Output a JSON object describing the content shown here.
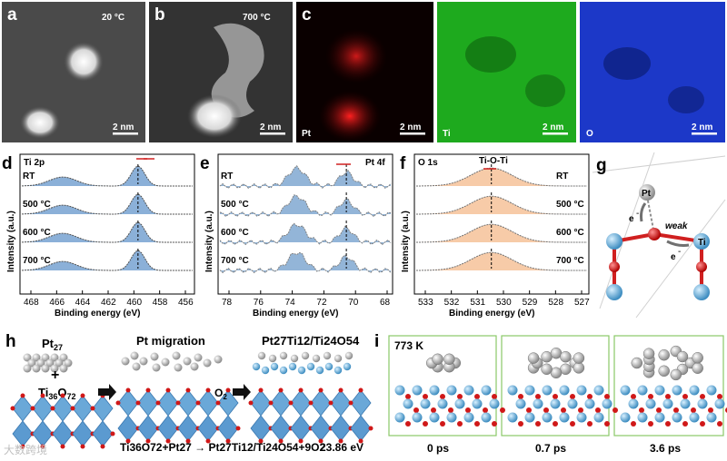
{
  "panels": {
    "a": {
      "label": "a",
      "temp": "20 °C",
      "scale": "2 nm"
    },
    "b": {
      "label": "b",
      "temp": "700 °C",
      "scale": "2 nm"
    },
    "c": {
      "label": "c",
      "maps": [
        {
          "element": "Pt",
          "scale": "2 nm",
          "color": "#e01010"
        },
        {
          "element": "Ti",
          "scale": "2 nm",
          "color": "#18b818"
        },
        {
          "element": "O",
          "scale": "2 nm",
          "color": "#1c38d8"
        }
      ]
    },
    "d": {
      "label": "d",
      "title": "Ti 2p",
      "ylabel": "Intensity (a.u.)",
      "xlabel": "Binding energy (eV)",
      "xticks": [
        "468",
        "466",
        "464",
        "462",
        "460",
        "458",
        "456"
      ],
      "traces": [
        "RT",
        "500 °C",
        "600 °C",
        "700 °C"
      ]
    },
    "e": {
      "label": "e",
      "title": "Pt 4f",
      "ylabel": "Intensity (a.u.)",
      "xlabel": "Binding energy (eV)",
      "xticks": [
        "78",
        "76",
        "74",
        "72",
        "70",
        "68"
      ],
      "traces": [
        "RT",
        "500 °C",
        "600 °C",
        "700 °C"
      ]
    },
    "f": {
      "label": "f",
      "title": "O 1s",
      "peak": "Ti-O-Ti",
      "ylabel": "Intensity (a.u.)",
      "xlabel": "Binding energy (eV)",
      "xticks": [
        "533",
        "532",
        "531",
        "530",
        "529",
        "528",
        "527"
      ],
      "traces": [
        "RT",
        "500 °C",
        "600 °C",
        "700 °C"
      ]
    },
    "g": {
      "label": "g",
      "pt": "Pt",
      "ti": "Ti",
      "weak": "weak",
      "e1": "e",
      "e2": "e",
      "sup": "-"
    },
    "h": {
      "label": "h",
      "left_top": "Pt",
      "left_top_sub": "27",
      "plus": "+",
      "left_bottom": "Ti",
      "left_bottom_sub1": "36",
      "left_bottom_o": "O",
      "left_bottom_sub2": "72",
      "mid_title": "Pt migration",
      "o2": "O",
      "o2_sub": "2",
      "right_title": "Pt27Ti12/Ti24O54",
      "equation": "Ti36O72+Pt27 → Pt27Ti12/Ti24O54+9O2",
      "energy": "23.86 eV"
    },
    "i": {
      "label": "i",
      "temp": "773 K",
      "times": [
        "0 ps",
        "0.7 ps",
        "3.6 ps"
      ]
    },
    "watermark": "大数跨境"
  }
}
